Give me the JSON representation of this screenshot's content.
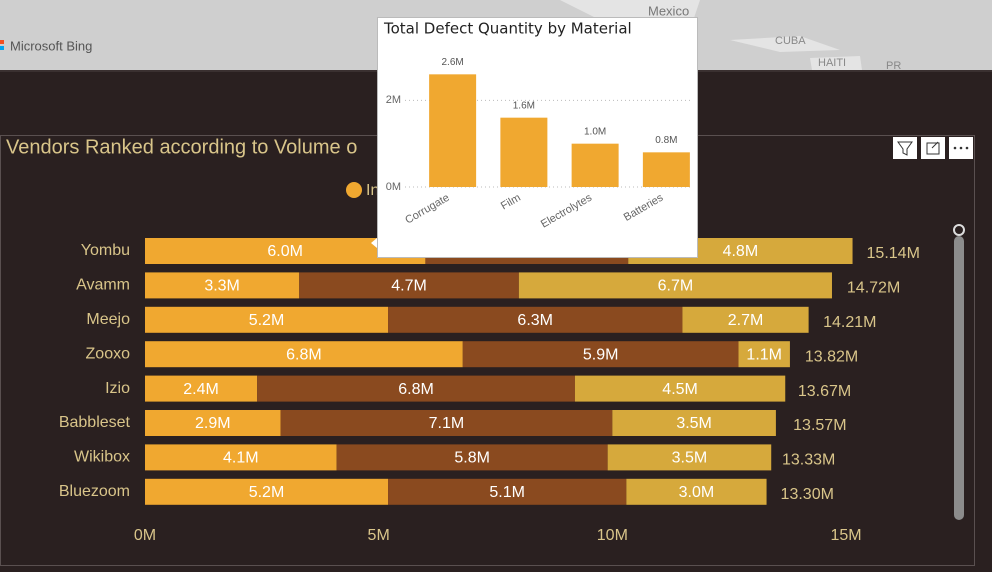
{
  "map": {
    "labels": [
      "Mexico",
      "CUBA",
      "HAITI",
      "PR"
    ],
    "attribution": "Microsoft Bing"
  },
  "chart_data": [
    {
      "type": "bar",
      "orientation": "horizontal",
      "stacked": true,
      "title": "Vendors Ranked according to Volume o",
      "categories": [
        "Yombu",
        "Avamm",
        "Meejo",
        "Zooxo",
        "Izio",
        "Babbleset",
        "Wikibox",
        "Bluezoom"
      ],
      "series": [
        {
          "name": "In",
          "color": "#f0a830",
          "values": [
            6000000,
            3300000,
            5200000,
            6800000,
            2400000,
            2900000,
            4100000,
            5200000
          ],
          "value_labels": [
            "6.0M",
            "3.3M",
            "5.2M",
            "6.8M",
            "2.4M",
            "2.9M",
            "4.1M",
            "5.2M"
          ]
        },
        {
          "color": "#8a4a1f",
          "values": [
            4340000,
            4700000,
            6300000,
            5900000,
            6800000,
            7100000,
            5800000,
            5100000
          ],
          "value_labels": [
            null,
            "4.7M",
            "6.3M",
            "5.9M",
            "6.8M",
            "7.1M",
            "5.8M",
            "5.1M"
          ]
        },
        {
          "color": "#d6a93c",
          "values": [
            4800000,
            6700000,
            2700000,
            1100000,
            4500000,
            3500000,
            3500000,
            3000000
          ],
          "value_labels": [
            "4.8M",
            "6.7M",
            "2.7M",
            "1.1M",
            "4.5M",
            "3.5M",
            "3.5M",
            "3.0M"
          ]
        }
      ],
      "totals": [
        15140000,
        14720000,
        14210000,
        13820000,
        13670000,
        13570000,
        13330000,
        13300000
      ],
      "total_labels": [
        "15.14M",
        "14.72M",
        "14.21M",
        "13.82M",
        "13.67M",
        "13.57M",
        "13.33M",
        "13.30M"
      ],
      "xlim": [
        0,
        15000000
      ],
      "xticks": [
        {
          "value": 0,
          "label": "0M"
        },
        {
          "value": 5000000,
          "label": "5M"
        },
        {
          "value": 10000000,
          "label": "10M"
        },
        {
          "value": 15000000,
          "label": "15M"
        }
      ],
      "grid": false
    },
    {
      "type": "bar",
      "orientation": "vertical",
      "title": "Total Defect Quantity by Material",
      "categories": [
        "Corrugate",
        "Film",
        "Electrolytes",
        "Batteries"
      ],
      "values": [
        2600000,
        1600000,
        1000000,
        800000
      ],
      "value_labels": [
        "2.6M",
        "1.6M",
        "1.0M",
        "0.8M"
      ],
      "color": "#f0a830",
      "ylim": [
        0,
        3000000
      ],
      "yticks": [
        {
          "value": 0,
          "label": "0M"
        },
        {
          "value": 2000000,
          "label": "2M"
        }
      ],
      "grid": true
    }
  ]
}
